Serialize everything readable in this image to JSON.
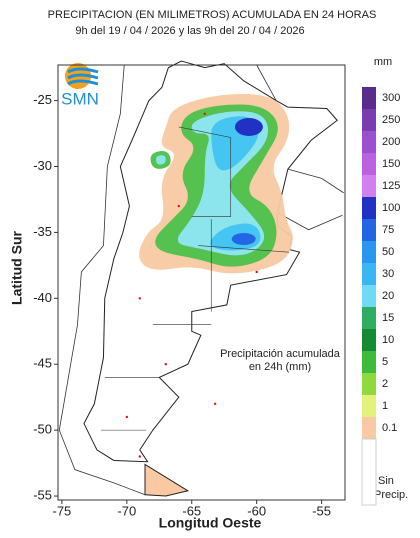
{
  "header": {
    "title": "PRECIPITACION (EN MILIMETROS) ACUMULADA EN 24 HORAS",
    "subtitle": "9h del 19 / 04 / 2026  y las 9h del 20 / 04 / 2026"
  },
  "logo": "SMN",
  "map": {
    "xlabel": "Longitud Oeste",
    "ylabel": "Latitud Sur",
    "xlim": [
      -75.3,
      -53.2
    ],
    "ylim": [
      -55.3,
      -22.3
    ],
    "xticks": [
      -75,
      -70,
      -65,
      -60,
      -55
    ],
    "yticks": [
      -25,
      -30,
      -35,
      -40,
      -45,
      -50,
      -55
    ],
    "annotation": [
      "Precipitación acumulada",
      "en 24h (mm)"
    ]
  },
  "legend": {
    "unit": "mm",
    "levels": [
      300,
      250,
      200,
      150,
      125,
      100,
      75,
      50,
      30,
      20,
      15,
      10,
      5,
      2,
      1,
      0.1
    ],
    "colors": [
      "#5b2b8c",
      "#7b3cb2",
      "#9c4fd0",
      "#bb62e2",
      "#d27ff0",
      "#2131c4",
      "#2366e4",
      "#2a96f0",
      "#3cb6f2",
      "#6fd9f6",
      "#2fae62",
      "#178a34",
      "#3fbb3c",
      "#8fd93c",
      "#e2f27a",
      "#f9c9a3"
    ],
    "none_label": [
      "Sin",
      "Precip."
    ]
  }
}
